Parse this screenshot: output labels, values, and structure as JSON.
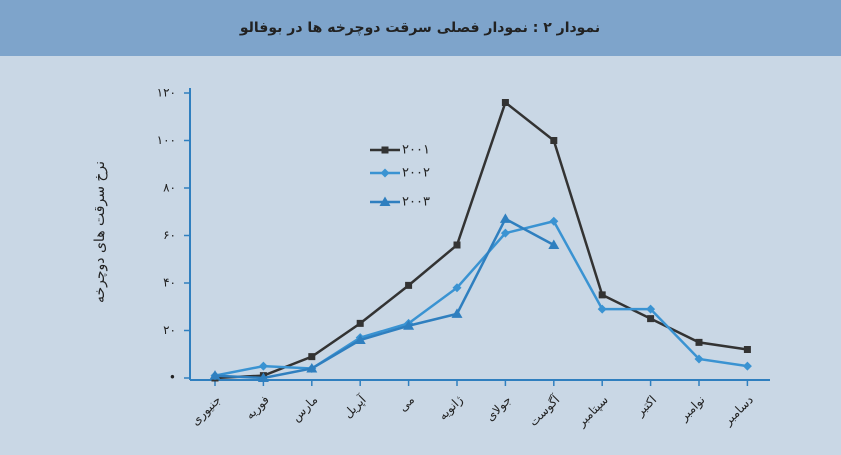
{
  "chart_data": {
    "type": "line",
    "title": "نمودار ۲ : نمودار فصلی سرقت دوچرخه ها در بوفالو",
    "ylabel": "نرخ سرقت های دوچرخه",
    "categories": [
      "جنیوری",
      "فوریه",
      "مارس",
      "آپریل",
      "می",
      "ژانویه",
      "جولای",
      "آگوست",
      "سپتامبر",
      "اکتبر",
      "نوامبر",
      "دسامبر"
    ],
    "series": [
      {
        "name": "۲۰۰۱",
        "color": "#333333",
        "marker": "square",
        "values": [
          0,
          1,
          9,
          23,
          39,
          56,
          116,
          100,
          35,
          25,
          15,
          12
        ]
      },
      {
        "name": "۲۰۰۲",
        "color": "#3a93d2",
        "marker": "diamond",
        "values": [
          1,
          5,
          4,
          17,
          23,
          38,
          61,
          66,
          29,
          29,
          8,
          5
        ]
      },
      {
        "name": "۲۰۰۳",
        "color": "#2f7fbf",
        "marker": "triangle",
        "values": [
          1,
          0,
          4,
          16,
          22,
          27,
          67,
          56,
          null,
          null,
          null,
          null
        ]
      }
    ],
    "ylim": [
      0,
      120
    ],
    "yticks": [
      {
        "value": 0,
        "label": "•"
      },
      {
        "value": 20,
        "label": "۲۰"
      },
      {
        "value": 40,
        "label": "۴۰"
      },
      {
        "value": 60,
        "label": "۶۰"
      },
      {
        "value": 80,
        "label": "۸۰"
      },
      {
        "value": 100,
        "label": "۱۰۰"
      },
      {
        "value": 120,
        "label": "۱۲۰"
      }
    ]
  }
}
